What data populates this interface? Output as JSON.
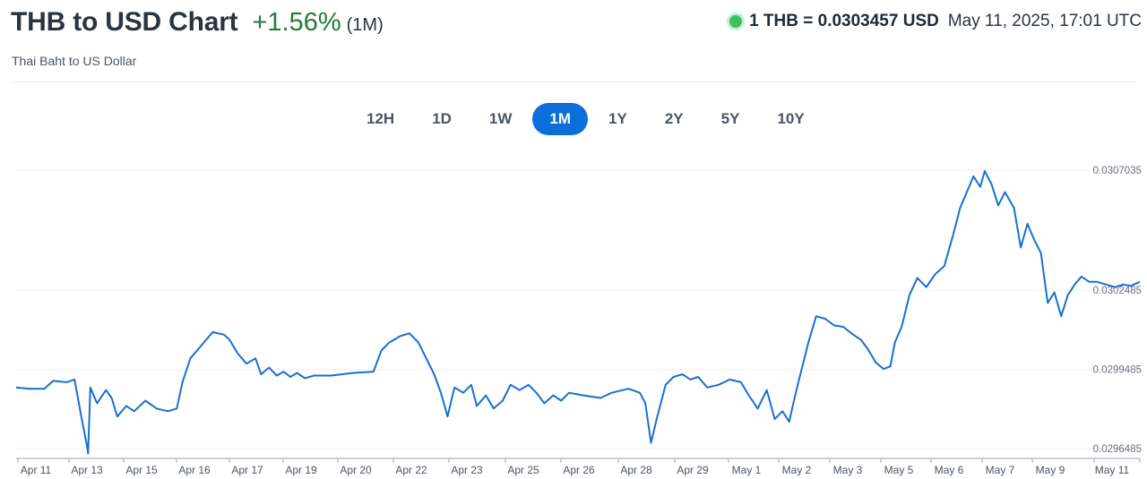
{
  "header": {
    "title": "THB to USD Chart",
    "change": "+1.56%",
    "period": "(1M)",
    "subtitle": "Thai Baht to US Dollar"
  },
  "rate": {
    "text": "1 THB = 0.0303457 USD",
    "timestamp": "May 11, 2025, 17:01 UTC"
  },
  "tabs": [
    "12H",
    "1D",
    "1W",
    "1M",
    "1Y",
    "2Y",
    "5Y",
    "10Y"
  ],
  "active_tab": "1M",
  "colors": {
    "line": "#1a6fcf",
    "accent": "#0a6fdb",
    "positive": "#237a3a",
    "live": "#3fbf5a"
  },
  "chart_data": {
    "type": "line",
    "ylim": [
      0.0296485,
      0.0307035
    ],
    "ytick_labels": [
      "0.0307035",
      "0.0302485",
      "0.0299485",
      "0.0296485"
    ],
    "xtick_labels": [
      "Apr 11",
      "Apr 13",
      "Apr 15",
      "Apr 16",
      "Apr 17",
      "Apr 19",
      "Apr 20",
      "Apr 22",
      "Apr 23",
      "Apr 25",
      "Apr 26",
      "Apr 28",
      "Apr 29",
      "May 1",
      "May 2",
      "May 3",
      "May 5",
      "May 6",
      "May 7",
      "May 9",
      "May 11"
    ],
    "series": [
      {
        "points": [
          [
            0.0,
            0.02988
          ],
          [
            0.012,
            0.029875
          ],
          [
            0.025,
            0.029875
          ],
          [
            0.033,
            0.029905
          ],
          [
            0.045,
            0.0299
          ],
          [
            0.052,
            0.02991
          ],
          [
            0.058,
            0.02977
          ],
          [
            0.063,
            0.02966
          ],
          [
            0.064,
            0.02963
          ],
          [
            0.066,
            0.02988
          ],
          [
            0.072,
            0.02982
          ],
          [
            0.08,
            0.02987
          ],
          [
            0.085,
            0.02984
          ],
          [
            0.09,
            0.02977
          ],
          [
            0.098,
            0.02981
          ],
          [
            0.105,
            0.02979
          ],
          [
            0.115,
            0.02983
          ],
          [
            0.125,
            0.0298
          ],
          [
            0.135,
            0.02979
          ],
          [
            0.143,
            0.0298
          ],
          [
            0.148,
            0.0299
          ],
          [
            0.155,
            0.02999
          ],
          [
            0.165,
            0.03004
          ],
          [
            0.175,
            0.03009
          ],
          [
            0.185,
            0.03008
          ],
          [
            0.19,
            0.03006
          ],
          [
            0.197,
            0.03001
          ],
          [
            0.205,
            0.02997
          ],
          [
            0.213,
            0.02999
          ],
          [
            0.218,
            0.02993
          ],
          [
            0.225,
            0.029955
          ],
          [
            0.232,
            0.029925
          ],
          [
            0.238,
            0.02994
          ],
          [
            0.244,
            0.02992
          ],
          [
            0.25,
            0.029935
          ],
          [
            0.257,
            0.029915
          ],
          [
            0.265,
            0.029925
          ],
          [
            0.28,
            0.029925
          ],
          [
            0.3,
            0.029935
          ],
          [
            0.318,
            0.02994
          ],
          [
            0.325,
            0.03002
          ],
          [
            0.332,
            0.03005
          ],
          [
            0.342,
            0.030075
          ],
          [
            0.35,
            0.030085
          ],
          [
            0.358,
            0.03005
          ],
          [
            0.365,
            0.02999
          ],
          [
            0.372,
            0.02993
          ],
          [
            0.378,
            0.02986
          ],
          [
            0.384,
            0.02977
          ],
          [
            0.39,
            0.02988
          ],
          [
            0.398,
            0.02986
          ],
          [
            0.405,
            0.02989
          ],
          [
            0.41,
            0.02981
          ],
          [
            0.418,
            0.02985
          ],
          [
            0.425,
            0.0298
          ],
          [
            0.433,
            0.02983
          ],
          [
            0.44,
            0.02989
          ],
          [
            0.448,
            0.02987
          ],
          [
            0.456,
            0.02989
          ],
          [
            0.463,
            0.02986
          ],
          [
            0.47,
            0.02982
          ],
          [
            0.478,
            0.02985
          ],
          [
            0.485,
            0.02983
          ],
          [
            0.492,
            0.02986
          ],
          [
            0.505,
            0.02985
          ],
          [
            0.52,
            0.02984
          ],
          [
            0.53,
            0.02986
          ],
          [
            0.545,
            0.029875
          ],
          [
            0.555,
            0.02986
          ],
          [
            0.56,
            0.02982
          ],
          [
            0.565,
            0.02967
          ],
          [
            0.57,
            0.02976
          ],
          [
            0.578,
            0.02989
          ],
          [
            0.585,
            0.02992
          ],
          [
            0.593,
            0.02993
          ],
          [
            0.6,
            0.02991
          ],
          [
            0.607,
            0.02992
          ],
          [
            0.615,
            0.02988
          ],
          [
            0.625,
            0.02989
          ],
          [
            0.635,
            0.02991
          ],
          [
            0.645,
            0.0299
          ],
          [
            0.652,
            0.02985
          ],
          [
            0.66,
            0.0298
          ],
          [
            0.668,
            0.02987
          ],
          [
            0.675,
            0.02976
          ],
          [
            0.682,
            0.02979
          ],
          [
            0.688,
            0.02975
          ],
          [
            0.69,
            0.02979
          ],
          [
            0.695,
            0.02988
          ],
          [
            0.705,
            0.03005
          ],
          [
            0.712,
            0.03015
          ],
          [
            0.72,
            0.03014
          ],
          [
            0.728,
            0.030115
          ],
          [
            0.736,
            0.03011
          ],
          [
            0.745,
            0.03008
          ],
          [
            0.752,
            0.03006
          ],
          [
            0.758,
            0.030025
          ],
          [
            0.765,
            0.029975
          ],
          [
            0.772,
            0.02995
          ],
          [
            0.778,
            0.02996
          ],
          [
            0.782,
            0.03005
          ],
          [
            0.788,
            0.03011
          ],
          [
            0.795,
            0.03023
          ],
          [
            0.802,
            0.030295
          ],
          [
            0.81,
            0.03026
          ],
          [
            0.818,
            0.03031
          ],
          [
            0.826,
            0.03034
          ],
          [
            0.834,
            0.03046
          ],
          [
            0.84,
            0.03056
          ],
          [
            0.846,
            0.03062
          ],
          [
            0.852,
            0.03068
          ],
          [
            0.858,
            0.03064
          ],
          [
            0.862,
            0.0307
          ],
          [
            0.868,
            0.03065
          ],
          [
            0.874,
            0.03057
          ],
          [
            0.88,
            0.03062
          ],
          [
            0.888,
            0.03056
          ],
          [
            0.894,
            0.03041
          ],
          [
            0.9,
            0.0305
          ],
          [
            0.906,
            0.03044
          ],
          [
            0.912,
            0.03039
          ],
          [
            0.918,
            0.0302
          ],
          [
            0.924,
            0.03024
          ],
          [
            0.93,
            0.03015
          ],
          [
            0.936,
            0.03023
          ],
          [
            0.942,
            0.03027
          ],
          [
            0.948,
            0.0303
          ],
          [
            0.955,
            0.03028
          ],
          [
            0.962,
            0.03028
          ],
          [
            0.97,
            0.03027
          ],
          [
            0.978,
            0.03026
          ],
          [
            0.985,
            0.03027
          ],
          [
            0.992,
            0.030265
          ],
          [
            1.0,
            0.03028
          ]
        ]
      }
    ]
  }
}
